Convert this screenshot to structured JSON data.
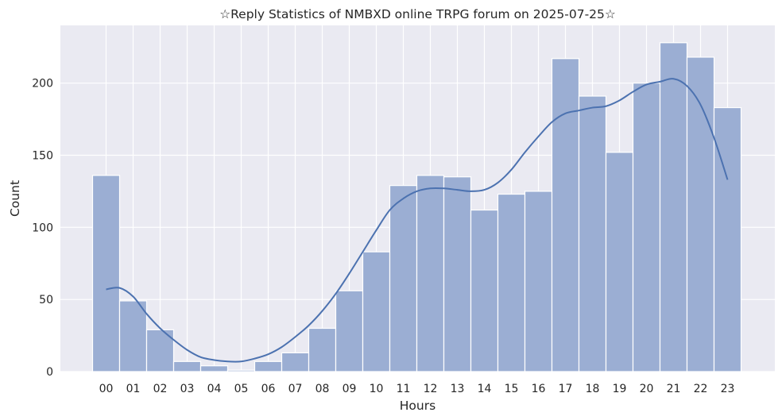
{
  "chart_data": {
    "type": "bar",
    "title": "☆Reply Statistics of NMBXD online TRPG forum on 2025-07-25☆",
    "xlabel": "Hours",
    "ylabel": "Count",
    "categories": [
      "00",
      "01",
      "02",
      "03",
      "04",
      "05",
      "06",
      "07",
      "08",
      "09",
      "10",
      "11",
      "12",
      "13",
      "14",
      "15",
      "16",
      "17",
      "18",
      "19",
      "20",
      "21",
      "22",
      "23"
    ],
    "values": [
      136,
      49,
      29,
      7,
      4,
      1,
      7,
      13,
      30,
      56,
      83,
      129,
      136,
      135,
      112,
      123,
      125,
      217,
      191,
      152,
      200,
      228,
      218,
      183
    ],
    "ylim": [
      0,
      240
    ],
    "yticks": [
      0,
      50,
      100,
      150,
      200
    ],
    "kde": {
      "x": [
        0,
        0.5,
        1,
        1.5,
        2,
        2.5,
        3,
        3.5,
        4,
        4.5,
        5,
        5.5,
        6,
        6.5,
        7,
        7.5,
        8,
        8.5,
        9,
        9.5,
        10,
        10.5,
        11,
        11.5,
        12,
        12.5,
        13,
        13.5,
        14,
        14.5,
        15,
        15.5,
        16,
        16.5,
        17,
        17.5,
        18,
        18.5,
        19,
        19.5,
        20,
        20.5,
        21,
        21.5,
        22,
        22.5,
        23
      ],
      "y": [
        57,
        58,
        52,
        40,
        30,
        22,
        15,
        10,
        8,
        7,
        7,
        9,
        12,
        17,
        24,
        32,
        42,
        54,
        68,
        83,
        98,
        112,
        120,
        125,
        127,
        127,
        126,
        125,
        126,
        131,
        140,
        152,
        163,
        173,
        179,
        181,
        183,
        184,
        188,
        194,
        199,
        201,
        203,
        198,
        185,
        162,
        133
      ]
    },
    "grid": true,
    "colors": {
      "bar_fill": "#9baed3",
      "bar_edge": "#ffffff",
      "kde_line": "#4c72b0",
      "plot_bg": "#eaeaf2",
      "grid": "#ffffff",
      "text": "#262626"
    }
  }
}
